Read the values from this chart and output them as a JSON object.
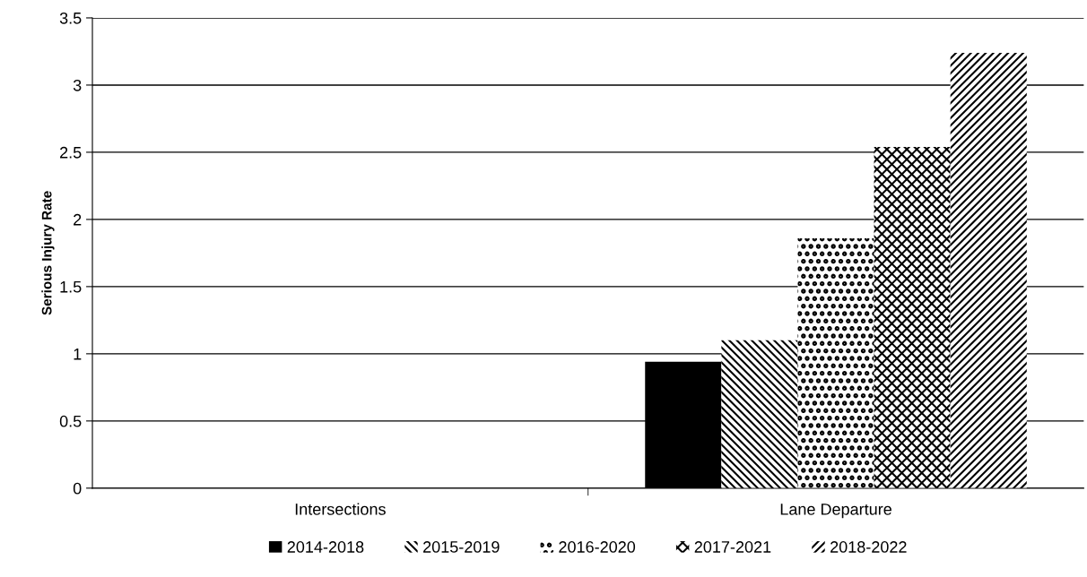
{
  "chart_data": {
    "type": "bar",
    "ylabel": "Serious Injury Rate",
    "categories": [
      "Intersections",
      "Lane Departure"
    ],
    "series": [
      {
        "name": "2014-2018",
        "color": "#000000",
        "values": [
          0,
          0.94
        ]
      },
      {
        "name": "2015-2019",
        "color": "#000000",
        "values": [
          0,
          1.1
        ]
      },
      {
        "name": "2016-2020",
        "color": "#000000",
        "values": [
          0,
          1.86
        ]
      },
      {
        "name": "2017-2021",
        "color": "#000000",
        "values": [
          0,
          2.54
        ]
      },
      {
        "name": "2018-2022",
        "color": "#000000",
        "values": [
          0,
          3.24
        ]
      }
    ],
    "ylim": [
      0,
      3.5
    ],
    "yticks": [
      0,
      0.5,
      1,
      1.5,
      2,
      2.5,
      3,
      3.5
    ],
    "grid": "y",
    "legend": "bottom"
  }
}
